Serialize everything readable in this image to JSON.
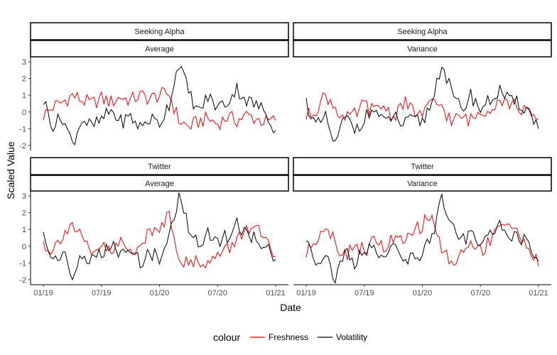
{
  "chart_data": {
    "type": "line",
    "xlabel": "Date",
    "ylabel": "Scaled Value",
    "x_range": [
      "2019-01",
      "2021-01"
    ],
    "x_ticks": [
      "01/19",
      "07/19",
      "01/20",
      "07/20",
      "01/21"
    ],
    "ylim": [
      -2.3,
      3.3
    ],
    "y_ticks": [
      "-2",
      "-1",
      "0",
      "1",
      "2",
      "3"
    ],
    "grid": false,
    "legend": {
      "title": "colour",
      "position": "bottom",
      "entries": [
        {
          "name": "Freshness",
          "color": "#ff0000"
        },
        {
          "name": "Volatility",
          "color": "#000000"
        }
      ]
    },
    "panels": [
      {
        "source": "Seeking Alpha",
        "metric": "Average",
        "series": [
          {
            "name": "Freshness",
            "color": "#ff0000",
            "x": [
              "2019-01",
              "2019-02",
              "2019-03",
              "2019-04",
              "2019-05",
              "2019-06",
              "2019-07",
              "2019-08",
              "2019-09",
              "2019-10",
              "2019-11",
              "2019-12",
              "2020-01",
              "2020-02",
              "2020-03",
              "2020-04",
              "2020-05",
              "2020-06",
              "2020-07",
              "2020-08",
              "2020-09",
              "2020-10",
              "2020-11",
              "2020-12",
              "2021-01"
            ],
            "values": [
              -0.2,
              0.3,
              0.6,
              1.0,
              0.7,
              0.5,
              0.8,
              0.6,
              0.9,
              0.7,
              1.0,
              0.8,
              1.0,
              1.1,
              -0.5,
              -0.9,
              -0.6,
              -0.4,
              -0.7,
              -0.3,
              -0.5,
              -0.2,
              -0.4,
              -0.6,
              -0.5
            ]
          },
          {
            "name": "Volatility",
            "color": "#000000",
            "x": [
              "2019-01",
              "2019-02",
              "2019-03",
              "2019-04",
              "2019-05",
              "2019-06",
              "2019-07",
              "2019-08",
              "2019-09",
              "2019-10",
              "2019-11",
              "2019-12",
              "2020-01",
              "2020-02",
              "2020-03",
              "2020-04",
              "2020-05",
              "2020-06",
              "2020-07",
              "2020-08",
              "2020-09",
              "2020-10",
              "2020-11",
              "2020-12",
              "2021-01"
            ],
            "values": [
              0.7,
              -0.8,
              -0.3,
              -1.9,
              -0.4,
              -0.9,
              -0.5,
              0.1,
              -0.6,
              -0.3,
              -0.9,
              -0.4,
              -0.7,
              0.5,
              3.0,
              1.2,
              0.0,
              0.9,
              0.3,
              0.6,
              1.4,
              0.7,
              0.4,
              0.0,
              -1.1
            ]
          }
        ]
      },
      {
        "source": "Seeking Alpha",
        "metric": "Variance",
        "series": [
          {
            "name": "Freshness",
            "color": "#ff0000",
            "x": [
              "2019-01",
              "2019-02",
              "2019-03",
              "2019-04",
              "2019-05",
              "2019-06",
              "2019-07",
              "2019-08",
              "2019-09",
              "2019-10",
              "2019-11",
              "2019-12",
              "2020-01",
              "2020-02",
              "2020-03",
              "2020-04",
              "2020-05",
              "2020-06",
              "2020-07",
              "2020-08",
              "2020-09",
              "2020-10",
              "2020-11",
              "2020-12",
              "2021-01"
            ],
            "values": [
              -0.3,
              0.2,
              1.0,
              0.3,
              -0.5,
              -0.2,
              0.5,
              0.0,
              0.4,
              -0.3,
              0.6,
              0.1,
              -0.2,
              0.5,
              0.4,
              -0.6,
              -0.3,
              -0.5,
              0.0,
              0.3,
              0.8,
              0.5,
              0.3,
              -0.2,
              -0.4
            ]
          },
          {
            "name": "Volatility",
            "color": "#000000",
            "x": [
              "2019-01",
              "2019-02",
              "2019-03",
              "2019-04",
              "2019-05",
              "2019-06",
              "2019-07",
              "2019-08",
              "2019-09",
              "2019-10",
              "2019-11",
              "2019-12",
              "2020-01",
              "2020-02",
              "2020-03",
              "2020-04",
              "2020-05",
              "2020-06",
              "2020-07",
              "2020-08",
              "2020-09",
              "2020-10",
              "2020-11",
              "2020-12",
              "2021-01"
            ],
            "values": [
              0.6,
              -0.9,
              -0.4,
              -2.0,
              -0.3,
              -1.0,
              -0.4,
              0.2,
              -0.7,
              -0.2,
              -0.8,
              -0.5,
              -0.6,
              0.6,
              3.0,
              1.1,
              0.1,
              1.0,
              0.2,
              0.7,
              1.3,
              0.6,
              0.5,
              0.1,
              -1.0
            ]
          }
        ]
      },
      {
        "source": "Twitter",
        "metric": "Average",
        "series": [
          {
            "name": "Freshness",
            "color": "#ff0000",
            "x": [
              "2019-01",
              "2019-02",
              "2019-03",
              "2019-04",
              "2019-05",
              "2019-06",
              "2019-07",
              "2019-08",
              "2019-09",
              "2019-10",
              "2019-11",
              "2019-12",
              "2020-01",
              "2020-02",
              "2020-03",
              "2020-04",
              "2020-05",
              "2020-06",
              "2020-07",
              "2020-08",
              "2020-09",
              "2020-10",
              "2020-11",
              "2020-12",
              "2021-01"
            ],
            "values": [
              0.2,
              -0.3,
              0.8,
              1.3,
              0.4,
              -0.6,
              0.1,
              -0.5,
              0.3,
              -0.4,
              0.2,
              0.7,
              1.1,
              2.0,
              -0.5,
              -1.2,
              -0.8,
              -1.0,
              -0.6,
              -0.2,
              0.3,
              1.2,
              1.0,
              0.2,
              -0.6
            ]
          },
          {
            "name": "Volatility",
            "color": "#000000",
            "x": [
              "2019-01",
              "2019-02",
              "2019-03",
              "2019-04",
              "2019-05",
              "2019-06",
              "2019-07",
              "2019-08",
              "2019-09",
              "2019-10",
              "2019-11",
              "2019-12",
              "2020-01",
              "2020-02",
              "2020-03",
              "2020-04",
              "2020-05",
              "2020-06",
              "2020-07",
              "2020-08",
              "2020-09",
              "2020-10",
              "2020-11",
              "2020-12",
              "2021-01"
            ],
            "values": [
              0.6,
              -0.8,
              -0.3,
              -2.0,
              -0.4,
              -0.9,
              -0.5,
              0.1,
              -0.6,
              -0.3,
              -0.9,
              -0.4,
              -0.7,
              0.5,
              3.0,
              1.2,
              0.0,
              0.9,
              0.3,
              0.6,
              1.4,
              0.7,
              0.4,
              0.0,
              -0.8
            ]
          }
        ]
      },
      {
        "source": "Twitter",
        "metric": "Variance",
        "series": [
          {
            "name": "Freshness",
            "color": "#ff0000",
            "x": [
              "2019-01",
              "2019-02",
              "2019-03",
              "2019-04",
              "2019-05",
              "2019-06",
              "2019-07",
              "2019-08",
              "2019-09",
              "2019-10",
              "2019-11",
              "2019-12",
              "2020-01",
              "2020-02",
              "2020-03",
              "2020-04",
              "2020-05",
              "2020-06",
              "2020-07",
              "2020-08",
              "2020-09",
              "2020-10",
              "2020-11",
              "2020-12",
              "2021-01"
            ],
            "values": [
              -0.5,
              0.5,
              1.3,
              0.3,
              -0.6,
              0.2,
              -0.3,
              0.4,
              -0.2,
              0.5,
              0.1,
              0.8,
              1.3,
              1.9,
              -0.2,
              -1.0,
              -0.5,
              0.2,
              -0.3,
              0.4,
              1.5,
              1.2,
              0.6,
              0.1,
              -1.2
            ]
          },
          {
            "name": "Volatility",
            "color": "#000000",
            "x": [
              "2019-01",
              "2019-02",
              "2019-03",
              "2019-04",
              "2019-05",
              "2019-06",
              "2019-07",
              "2019-08",
              "2019-09",
              "2019-10",
              "2019-11",
              "2019-12",
              "2020-01",
              "2020-02",
              "2020-03",
              "2020-04",
              "2020-05",
              "2020-06",
              "2020-07",
              "2020-08",
              "2020-09",
              "2020-10",
              "2020-11",
              "2020-12",
              "2021-01"
            ],
            "values": [
              0.5,
              -0.9,
              -0.4,
              -2.1,
              -0.3,
              -1.0,
              -0.4,
              0.2,
              -0.7,
              -0.2,
              -0.8,
              -0.5,
              -0.6,
              0.6,
              3.0,
              1.1,
              0.1,
              1.0,
              0.2,
              0.7,
              1.3,
              0.6,
              0.5,
              0.1,
              -0.9
            ]
          }
        ]
      }
    ]
  }
}
